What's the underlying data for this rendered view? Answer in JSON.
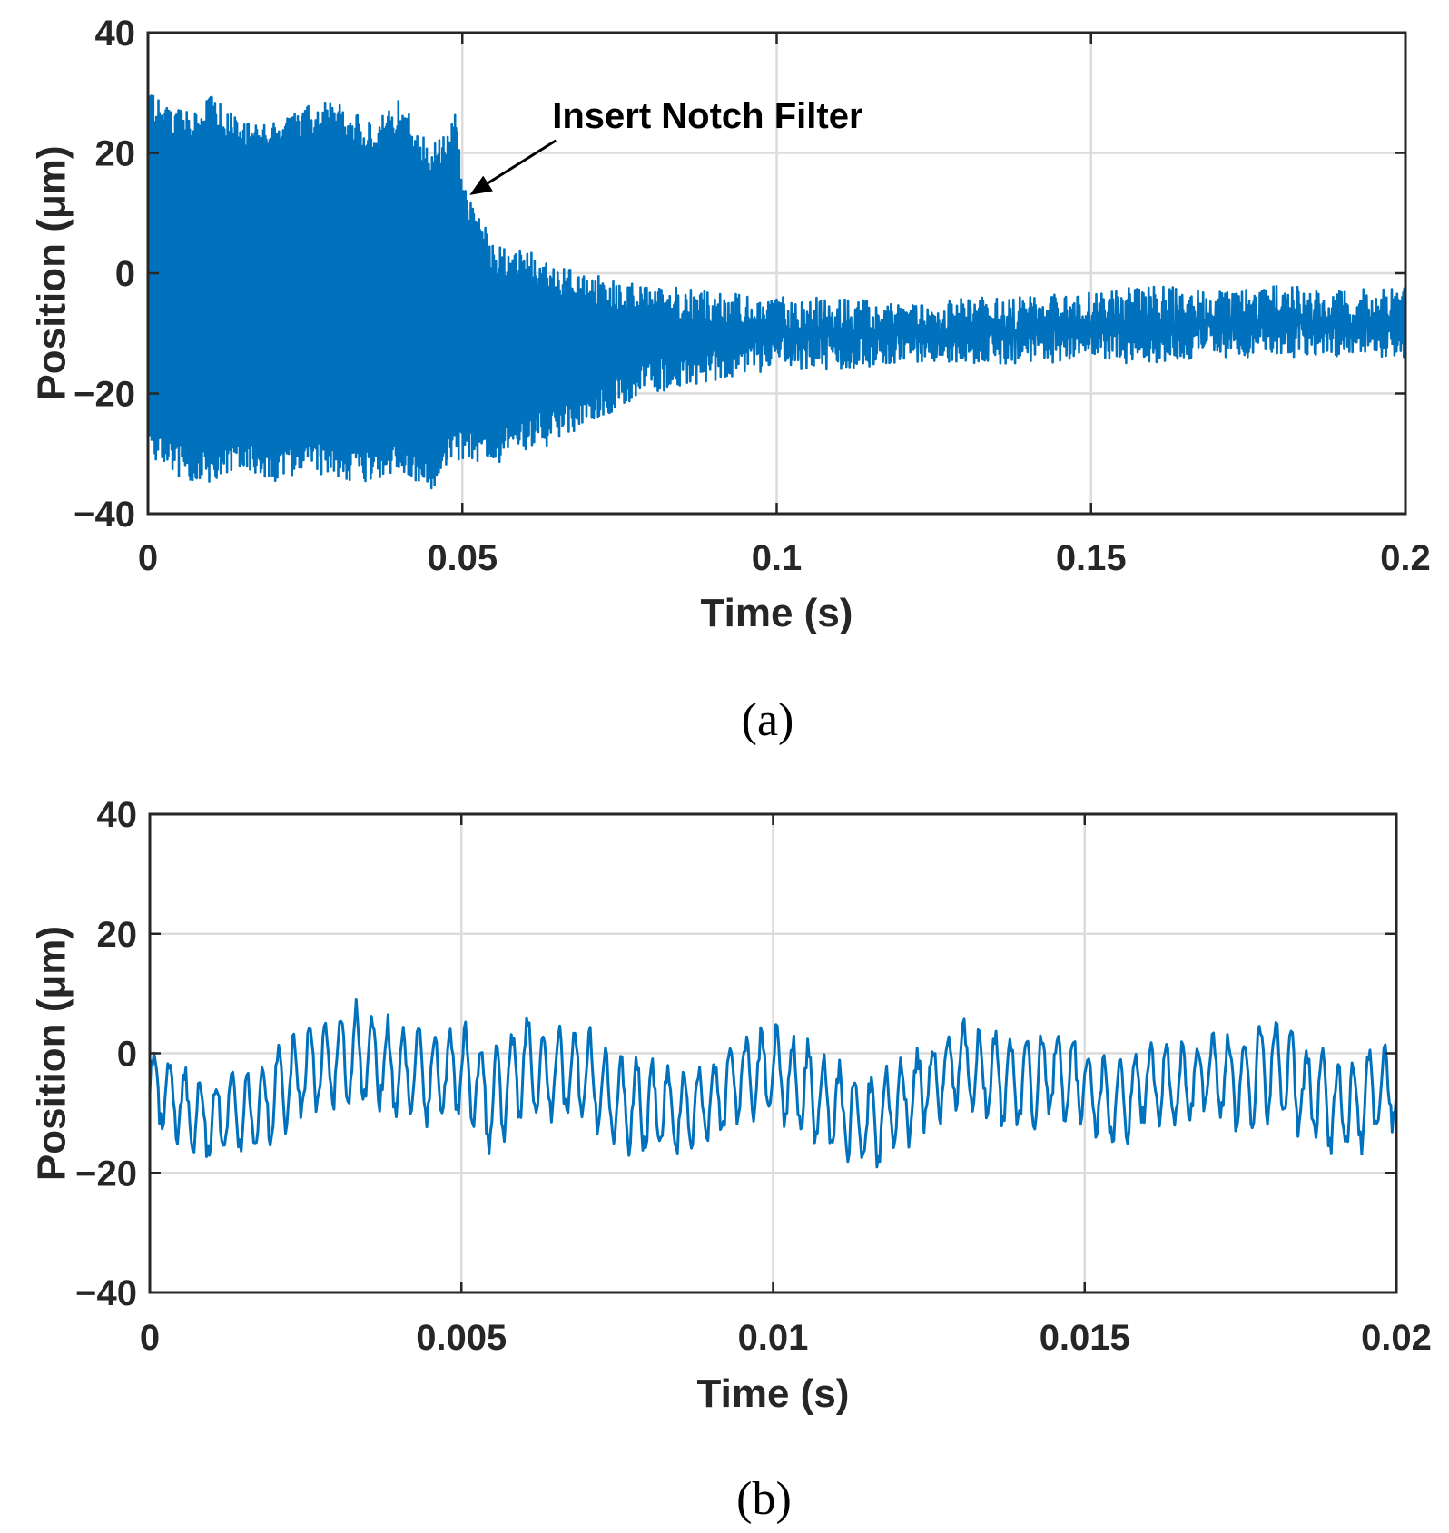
{
  "chart_data": [
    {
      "type": "line",
      "panel_label": "(a)",
      "xlabel": "Time (s)",
      "ylabel": "Position (μm)",
      "xlim": [
        0,
        0.2
      ],
      "ylim": [
        -40,
        40
      ],
      "x_ticks": [
        0,
        0.05,
        0.1,
        0.15,
        0.2
      ],
      "x_tick_labels": [
        "0",
        "0.05",
        "0.1",
        "0.15",
        "0.2"
      ],
      "y_ticks": [
        -40,
        -20,
        0,
        20,
        40
      ],
      "y_tick_labels": [
        "−40",
        "−20",
        "0",
        "20",
        "40"
      ],
      "grid": true,
      "color": "#0072BD",
      "annotation": {
        "text": "Insert Notch Filter",
        "x": 0.05,
        "y": 13
      },
      "series": [
        {
          "name": "",
          "envelope": {
            "x": [
              0,
              0.005,
              0.01,
              0.015,
              0.02,
              0.025,
              0.03,
              0.035,
              0.04,
              0.045,
              0.049,
              0.05,
              0.055,
              0.06,
              0.065,
              0.07,
              0.08,
              0.09,
              0.1,
              0.11,
              0.12,
              0.13,
              0.14,
              0.15,
              0.16,
              0.17,
              0.18,
              0.19,
              0.2
            ],
            "upper": [
              27,
              24,
              27,
              22,
              22,
              25,
              26,
              22,
              26,
              18,
              24,
              12,
              2,
              1,
              -2,
              -3,
              -5,
              -6,
              -7,
              -7,
              -8,
              -7,
              -7,
              -6,
              -5,
              -6,
              -5,
              -6,
              -5
            ],
            "lower": [
              -27,
              -31,
              -32,
              -29,
              -32,
              -30,
              -31,
              -32,
              -30,
              -33,
              -28,
              -28,
              -29,
              -27,
              -25,
              -22,
              -17,
              -15,
              -13,
              -13,
              -12,
              -12,
              -12,
              -12,
              -12,
              -11,
              -11,
              -11,
              -11
            ]
          },
          "mean": -8
        }
      ]
    },
    {
      "type": "line",
      "panel_label": "(b)",
      "xlabel": "Time (s)",
      "ylabel": "Position (μm)",
      "xlim": [
        0,
        0.02
      ],
      "ylim": [
        -40,
        40
      ],
      "x_ticks": [
        0,
        0.005,
        0.01,
        0.015,
        0.02
      ],
      "x_tick_labels": [
        "0",
        "0.005",
        "0.01",
        "0.015",
        "0.02"
      ],
      "y_ticks": [
        -40,
        -20,
        0,
        20,
        40
      ],
      "y_tick_labels": [
        "−40",
        "−20",
        "0",
        "20",
        "40"
      ],
      "grid": true,
      "color": "#0072BD",
      "series": [
        {
          "name": "",
          "x": [
            0,
            0.0005,
            0.001,
            0.0015,
            0.002,
            0.0025,
            0.003,
            0.0035,
            0.004,
            0.0045,
            0.005,
            0.0055,
            0.006,
            0.0065,
            0.007,
            0.0075,
            0.008,
            0.0085,
            0.009,
            0.0095,
            0.01,
            0.0105,
            0.011,
            0.0115,
            0.012,
            0.0125,
            0.013,
            0.0135,
            0.014,
            0.0145,
            0.015,
            0.0155,
            0.016,
            0.0165,
            0.017,
            0.0175,
            0.018,
            0.0185,
            0.019,
            0.0195,
            0.02
          ],
          "y": [
            -5,
            -9,
            -11,
            -10,
            -7,
            -3,
            -1,
            0,
            -3,
            -4,
            -3,
            -8,
            -2,
            -3,
            -4,
            -8,
            -9,
            -10,
            -8,
            -4,
            -3,
            -6,
            -9,
            -12,
            -9,
            -5,
            -2,
            -4,
            -5,
            -3,
            -5,
            -9,
            -4,
            -6,
            -3,
            -5,
            -2,
            -6,
            -9,
            -8,
            -5
          ],
          "amplitude": [
            5,
            6,
            6,
            6,
            7,
            7,
            8,
            7,
            7,
            7,
            7,
            8,
            7,
            7,
            7,
            7,
            7,
            7,
            6,
            6,
            7,
            7,
            7,
            7,
            7,
            6,
            6,
            7,
            7,
            7,
            6,
            6,
            6,
            6,
            6,
            7,
            8,
            7,
            7,
            7,
            6
          ],
          "oscillation_period": 0.00025
        }
      ]
    }
  ]
}
